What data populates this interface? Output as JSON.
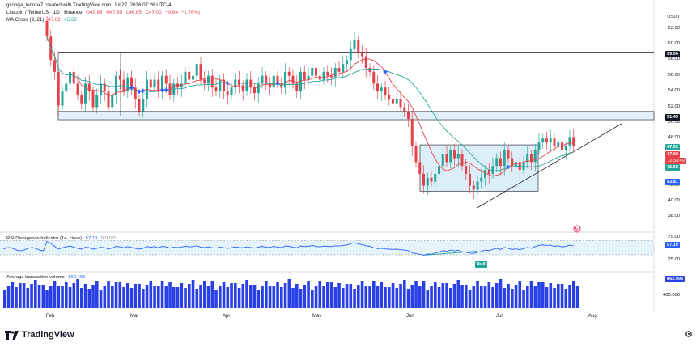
{
  "header": {
    "caption": "gitonga_lennox7 created with TradingView.com, Jul 27, 2026 07:26 UTC-4",
    "symbol": "Litecoin / TetherUS · 1D · Binance",
    "o": "O47.85",
    "h": "H47.85",
    "l": "L46.85",
    "c": "C47.00",
    "chg": "−0.84 (−1.76%)",
    "ma_name": "MA Cross (9, 21)",
    "ma_fast": "47.02",
    "ma_slow": "45.68"
  },
  "currency": "USDT",
  "price_axis": [
    "62.00",
    "60.00",
    "58.00",
    "56.00",
    "54.00",
    "52.00",
    "50.00",
    "48.00",
    "46.00",
    "44.00",
    "42.00",
    "40.00",
    "38.00"
  ],
  "price_tags": {
    "level_top": "59.00",
    "level_mid": "51.45",
    "last": "47.00",
    "countdown": "12:33:49",
    "ma_fast": "47.02",
    "ma_slow": "45.68",
    "range_low": "43.81"
  },
  "rsi": {
    "label": "RSI Divergence Indicator (14, close)",
    "value": "57.19",
    "zeros": "0 0 0 0",
    "axis": [
      "75.00",
      "25.00"
    ],
    "bull": "Bull"
  },
  "volume": {
    "label": "Average transaction volume",
    "value": "862.495",
    "axis": [
      "400.000"
    ]
  },
  "months": [
    "Feb",
    "Mar",
    "Apr",
    "May",
    "Jun",
    "Jul",
    "Aug"
  ],
  "logo": "TradingView",
  "colors": {
    "up": "#26a69a",
    "down": "#e5434b",
    "fast_ma": "#e5434b",
    "slow_ma": "#26a69a",
    "zone": "#bfe0f2",
    "volume": "#2940e6",
    "rsi": "#2962ff"
  },
  "chart_data": {
    "type": "candlestick",
    "title": "Litecoin / TetherUS · 1D · Binance",
    "y_range": [
      38,
      63
    ],
    "horizontal_levels": [
      59.0,
      51.45
    ],
    "support_zone": [
      50.4,
      51.45
    ],
    "consolidation_range": [
      41.3,
      47.2
    ],
    "rising_trendline": [
      39.2,
      49.9
    ],
    "closes": [
      61.0,
      58.0,
      56.5,
      52.2,
      54.0,
      55.0,
      56.5,
      55.0,
      53.5,
      52.5,
      55.0,
      54.0,
      52.0,
      53.5,
      55.0,
      54.0,
      52.0,
      53.5,
      56.0,
      55.5,
      54.0,
      55.8,
      54.5,
      53.0,
      51.5,
      53.0,
      55.5,
      54.5,
      55.5,
      54.0,
      56.0,
      55.0,
      53.5,
      55.0,
      54.5,
      55.0,
      56.5,
      55.5,
      56.0,
      57.5,
      55.5,
      55.0,
      56.0,
      54.5,
      54.0,
      55.5,
      54.0,
      53.5,
      54.5,
      55.5,
      54.8,
      54.0,
      55.5,
      54.5,
      53.8,
      55.0,
      56.0,
      55.0,
      54.5,
      56.0,
      55.0,
      54.5,
      56.5,
      56.0,
      55.0,
      54.0,
      56.5,
      55.5,
      56.0,
      57.0,
      56.0,
      55.5,
      56.5,
      56.0,
      55.8,
      57.0,
      56.5,
      57.5,
      58.0,
      59.5,
      60.5,
      59.0,
      58.5,
      57.0,
      56.5,
      55.0,
      54.0,
      54.5,
      53.5,
      53.0,
      52.5,
      53.0,
      52.0,
      51.5,
      50.5,
      47.0,
      45.0,
      43.5,
      42.0,
      43.0,
      42.5,
      43.5,
      44.5,
      46.0,
      45.0,
      46.5,
      45.5,
      46.0,
      44.5,
      43.5,
      42.0,
      41.5,
      42.5,
      43.0,
      44.0,
      43.5,
      44.5,
      45.5,
      44.5,
      46.5,
      45.5,
      44.5,
      45.0,
      44.0,
      45.0,
      46.0,
      45.0,
      46.5,
      47.5,
      48.0,
      47.5,
      48.0,
      47.0,
      47.5,
      46.5,
      47.0,
      48.2,
      47.0
    ],
    "rsi_values": [
      72,
      65,
      55,
      45,
      50,
      53,
      56,
      52,
      48,
      45,
      52,
      50,
      45,
      48,
      52,
      50,
      46,
      49,
      55,
      53,
      50,
      54,
      51,
      48,
      45,
      48,
      54,
      52,
      54,
      50,
      55,
      53,
      49,
      52,
      51,
      52,
      56,
      53,
      54,
      57,
      52,
      51,
      53,
      50,
      49,
      52,
      50,
      48,
      50,
      53,
      51,
      50,
      53,
      51,
      49,
      52,
      55,
      52,
      51,
      55,
      52,
      51,
      56,
      55,
      52,
      50,
      56,
      54,
      55,
      58,
      55,
      53,
      56,
      55,
      54,
      57,
      56,
      58,
      60,
      64,
      68,
      63,
      61,
      57,
      55,
      50,
      47,
      48,
      46,
      45,
      44,
      45,
      43,
      42,
      40,
      32,
      29,
      27,
      24,
      28,
      27,
      31,
      35,
      40,
      37,
      42,
      39,
      41,
      36,
      34,
      31,
      30,
      34,
      37,
      42,
      40,
      44,
      48,
      44,
      51,
      48,
      44,
      46,
      43,
      47,
      51,
      48,
      54,
      58,
      60,
      58,
      59,
      55,
      57,
      53,
      55,
      59,
      57
    ]
  }
}
